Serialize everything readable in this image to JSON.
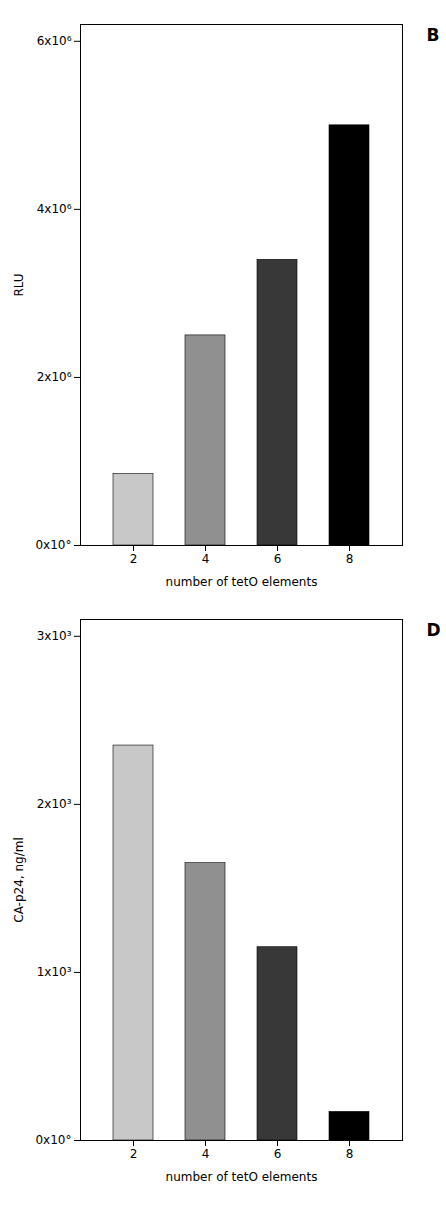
{
  "chart_data": [
    {
      "type": "bar",
      "title": "B",
      "categories": [
        2,
        4,
        6,
        8
      ],
      "values": [
        850000,
        2500000,
        3400000,
        5000000
      ],
      "colors": [
        "#c8c8c8",
        "#909090",
        "#383838",
        "#000000"
      ],
      "xlabel": "number of tetO elements",
      "ylabel": "RLU",
      "ylim": [
        0,
        6200000
      ],
      "yticks": [
        {
          "value": 0,
          "label": "0x10°"
        },
        {
          "value": 2000000,
          "label": "2x10⁶"
        },
        {
          "value": 4000000,
          "label": "4x10⁶"
        },
        {
          "value": 6000000,
          "label": "6x10⁶"
        }
      ]
    },
    {
      "type": "bar",
      "title": "D",
      "categories": [
        2,
        4,
        6,
        8
      ],
      "values": [
        2350,
        1650,
        1150,
        170
      ],
      "colors": [
        "#c8c8c8",
        "#909090",
        "#383838",
        "#000000"
      ],
      "xlabel": "number of tetO elements",
      "ylabel": "CA-p24, ng/ml",
      "ylim": [
        0,
        3100
      ],
      "yticks": [
        {
          "value": 0,
          "label": "0x10°"
        },
        {
          "value": 1000,
          "label": "1x10³"
        },
        {
          "value": 2000,
          "label": "2x10³"
        },
        {
          "value": 3000,
          "label": "3x10³"
        }
      ]
    }
  ]
}
